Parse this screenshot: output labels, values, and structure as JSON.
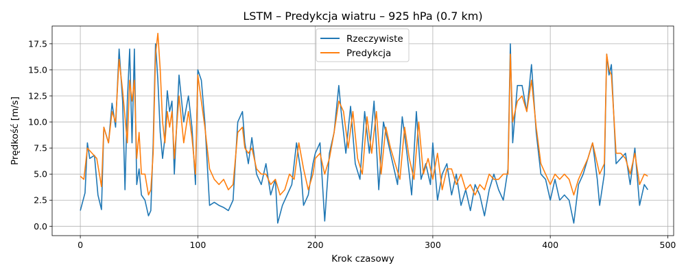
{
  "chart_data": {
    "type": "line",
    "title": "LSTM – Predykcja wiatru – 925 hPa (0.7 km)",
    "xlabel": "Krok czasowy",
    "ylabel": "Prędkość [m/s]",
    "xlim": [
      -24,
      505
    ],
    "ylim": [
      -0.9,
      19.2
    ],
    "xticks": [
      0,
      100,
      200,
      300,
      400,
      500
    ],
    "yticks": [
      0.0,
      2.5,
      5.0,
      7.5,
      10.0,
      12.5,
      15.0,
      17.5
    ],
    "ytick_labels": [
      "0.0",
      "2.5",
      "5.0",
      "7.5",
      "10.0",
      "12.5",
      "15.0",
      "17.5"
    ],
    "grid": true,
    "legend_position": "top-center",
    "colors": {
      "actual": "#1f77b4",
      "prediction": "#ff7f0e"
    },
    "series": [
      {
        "name": "Rzeczywiste",
        "x": [
          0,
          4,
          6,
          8,
          12,
          15,
          18,
          20,
          24,
          27,
          30,
          33,
          36,
          38,
          40,
          42,
          44,
          46,
          48,
          50,
          52,
          55,
          58,
          60,
          62,
          64,
          66,
          68,
          70,
          72,
          74,
          76,
          78,
          80,
          84,
          88,
          92,
          95,
          98,
          100,
          103,
          106,
          110,
          114,
          118,
          122,
          126,
          130,
          134,
          138,
          140,
          143,
          146,
          150,
          154,
          158,
          162,
          166,
          168,
          172,
          176,
          180,
          184,
          188,
          190,
          194,
          198,
          200,
          204,
          208,
          212,
          216,
          220,
          222,
          226,
          230,
          234,
          238,
          242,
          246,
          250,
          254,
          258,
          262,
          266,
          270,
          274,
          278,
          282,
          286,
          290,
          294,
          298,
          300,
          304,
          308,
          312,
          316,
          320,
          324,
          328,
          332,
          336,
          340,
          344,
          348,
          352,
          356,
          360,
          364,
          366,
          368,
          372,
          376,
          380,
          384,
          388,
          392,
          396,
          400,
          404,
          408,
          412,
          416,
          420,
          424,
          428,
          432,
          436,
          440,
          442,
          446,
          448,
          450,
          452,
          456,
          460,
          464,
          468,
          472,
          476,
          480,
          483
        ],
        "values": [
          1.5,
          3.2,
          8.0,
          6.5,
          6.8,
          3.0,
          1.6,
          9.5,
          8.0,
          11.8,
          9.5,
          17.0,
          12.0,
          3.5,
          12.0,
          17.0,
          8.0,
          17.0,
          4.0,
          5.5,
          3.0,
          2.5,
          1.0,
          1.5,
          8.0,
          17.5,
          14.0,
          9.0,
          6.5,
          8.5,
          13.0,
          11.0,
          12.0,
          5.0,
          14.5,
          10.0,
          12.5,
          9.5,
          4.0,
          15.0,
          14.0,
          10.0,
          2.0,
          2.3,
          2.0,
          1.8,
          1.5,
          2.5,
          10.0,
          11.0,
          8.0,
          6.0,
          8.5,
          5.0,
          4.0,
          6.0,
          3.0,
          4.5,
          0.3,
          2.0,
          3.0,
          4.0,
          8.0,
          5.0,
          2.0,
          3.0,
          6.0,
          7.0,
          8.0,
          0.5,
          7.0,
          9.0,
          13.5,
          11.0,
          7.0,
          11.5,
          6.0,
          4.5,
          11.0,
          7.0,
          12.0,
          3.5,
          10.0,
          8.0,
          6.0,
          4.0,
          10.5,
          7.0,
          3.0,
          11.0,
          4.5,
          6.0,
          4.0,
          8.0,
          2.5,
          5.0,
          6.0,
          3.0,
          5.0,
          2.0,
          3.5,
          1.5,
          4.0,
          3.0,
          1.0,
          3.5,
          5.0,
          3.5,
          2.5,
          5.5,
          17.5,
          8.0,
          13.5,
          13.5,
          11.0,
          15.5,
          9.0,
          5.0,
          4.5,
          2.5,
          4.5,
          2.5,
          3.0,
          2.5,
          0.3,
          4.0,
          5.0,
          6.5,
          8.0,
          4.5,
          2.0,
          5.0,
          16.5,
          14.5,
          15.5,
          6.0,
          6.5,
          7.0,
          4.0,
          7.5,
          2.0,
          4.0,
          3.5
        ]
      },
      {
        "name": "Predykcja",
        "x": [
          0,
          3,
          6,
          10,
          14,
          18,
          20,
          24,
          27,
          30,
          33,
          36,
          40,
          42,
          44,
          46,
          48,
          50,
          52,
          55,
          58,
          60,
          62,
          64,
          66,
          68,
          70,
          72,
          74,
          76,
          78,
          80,
          84,
          88,
          92,
          95,
          98,
          100,
          103,
          106,
          110,
          114,
          118,
          122,
          126,
          130,
          134,
          138,
          140,
          143,
          146,
          150,
          154,
          158,
          162,
          166,
          170,
          174,
          178,
          182,
          186,
          190,
          194,
          198,
          200,
          204,
          208,
          212,
          216,
          220,
          224,
          228,
          232,
          236,
          240,
          244,
          248,
          252,
          256,
          260,
          264,
          268,
          272,
          276,
          280,
          284,
          288,
          292,
          296,
          300,
          304,
          308,
          312,
          316,
          320,
          324,
          328,
          332,
          336,
          340,
          344,
          348,
          352,
          356,
          360,
          364,
          366,
          368,
          372,
          376,
          380,
          384,
          388,
          392,
          396,
          400,
          404,
          408,
          412,
          416,
          420,
          424,
          428,
          432,
          436,
          440,
          442,
          446,
          448,
          450,
          452,
          456,
          460,
          464,
          468,
          472,
          476,
          480,
          483
        ],
        "values": [
          4.8,
          4.5,
          7.5,
          7.0,
          6.5,
          3.8,
          9.5,
          8.0,
          11.0,
          10.0,
          16.0,
          13.0,
          8.0,
          14.0,
          12.0,
          14.0,
          6.5,
          9.0,
          5.0,
          5.0,
          3.0,
          3.5,
          7.0,
          16.5,
          18.5,
          15.0,
          10.0,
          8.0,
          11.0,
          9.5,
          11.0,
          6.5,
          12.5,
          8.0,
          11.0,
          8.5,
          5.0,
          14.5,
          12.0,
          9.5,
          5.5,
          4.5,
          4.0,
          4.5,
          3.5,
          4.0,
          9.0,
          9.5,
          7.5,
          7.0,
          7.5,
          5.5,
          5.0,
          5.0,
          4.0,
          4.5,
          3.0,
          3.5,
          5.0,
          4.5,
          8.0,
          5.5,
          3.5,
          5.0,
          6.5,
          7.0,
          5.0,
          6.5,
          9.0,
          12.0,
          11.0,
          7.5,
          11.0,
          6.5,
          5.0,
          10.5,
          7.0,
          11.0,
          5.0,
          9.5,
          7.5,
          6.0,
          4.5,
          9.5,
          6.5,
          4.5,
          10.0,
          5.0,
          6.5,
          4.5,
          7.0,
          3.5,
          5.5,
          5.5,
          4.0,
          5.0,
          3.5,
          4.0,
          3.0,
          4.0,
          3.5,
          5.0,
          4.5,
          4.5,
          5.0,
          5.0,
          16.5,
          10.0,
          12.0,
          12.5,
          11.0,
          14.0,
          9.5,
          6.0,
          5.0,
          4.0,
          5.0,
          4.5,
          5.0,
          4.5,
          3.0,
          4.5,
          5.5,
          6.5,
          8.0,
          6.0,
          5.0,
          6.0,
          16.5,
          15.0,
          14.5,
          7.0,
          7.0,
          6.5,
          5.0,
          7.0,
          4.0,
          5.0,
          4.8
        ]
      }
    ]
  }
}
